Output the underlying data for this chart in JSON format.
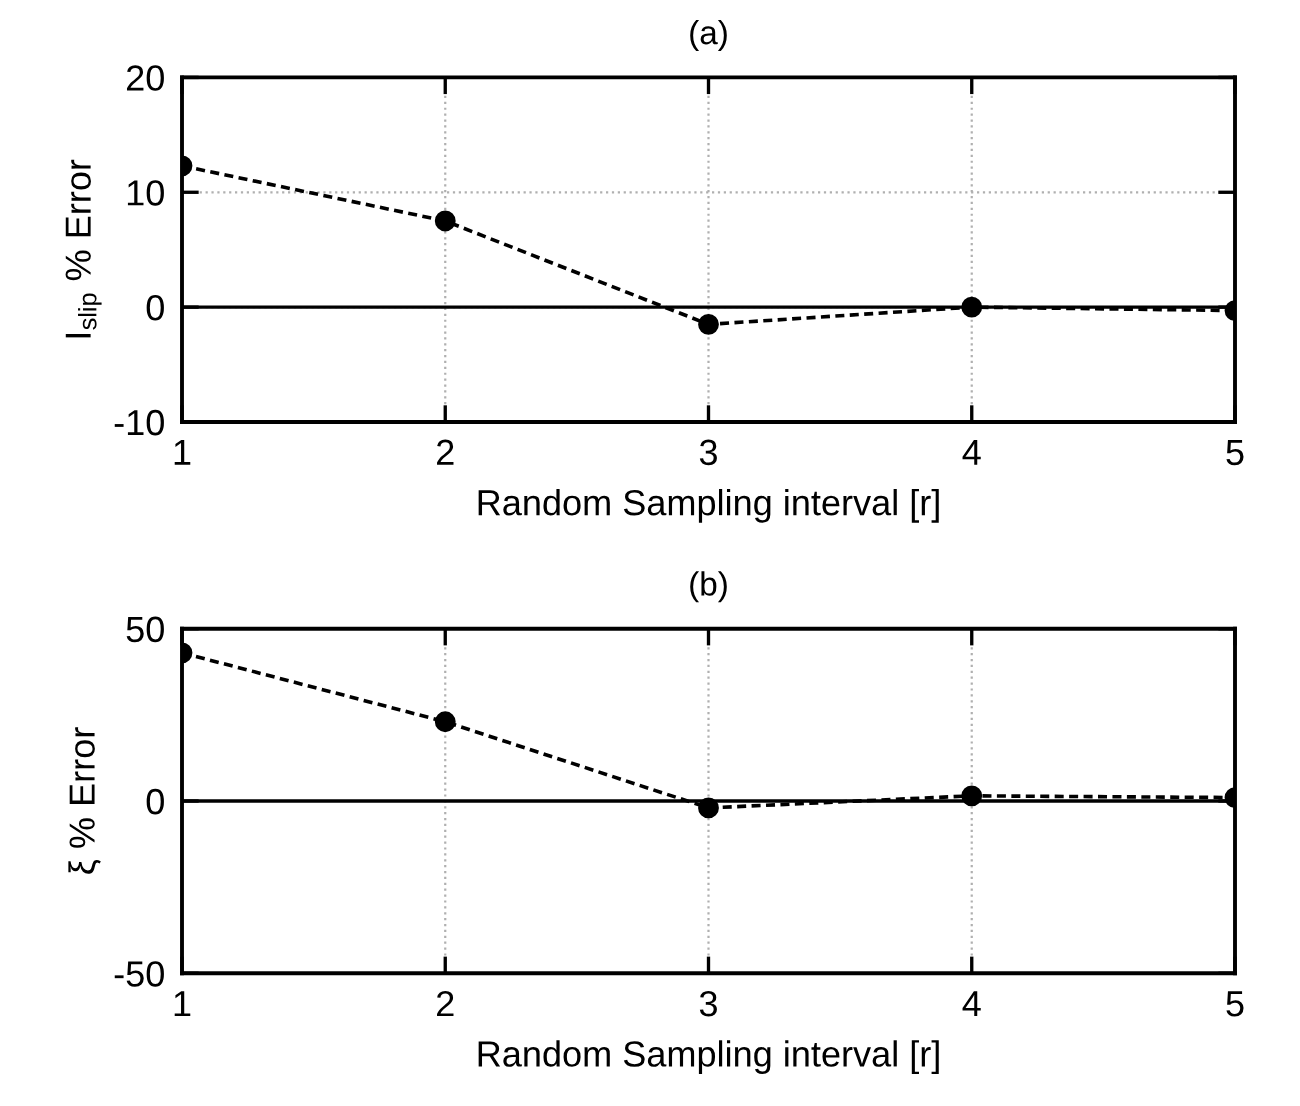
{
  "chart_data": [
    {
      "type": "line",
      "title": "(a)",
      "xlabel": "Random Sampling interval [r]",
      "ylabel": "I$_{slip}$ % Error",
      "x": [
        1,
        2,
        3,
        4,
        5
      ],
      "series": [
        {
          "color": "#000000",
          "values": [
            12.3,
            7.5,
            -1.5,
            0,
            -0.3
          ]
        }
      ],
      "xlim": [
        1,
        5
      ],
      "xticks": [
        1,
        2,
        3,
        4,
        5
      ],
      "ylim": [
        -10,
        20
      ],
      "yticks": [
        -10,
        0,
        10,
        20
      ],
      "ref_lines": [
        {
          "axis": "y",
          "value": 0,
          "color": "#000000",
          "line_style": "solid"
        }
      ],
      "grid": true,
      "marker": "circle",
      "line_style": "dashed"
    },
    {
      "type": "line",
      "title": "(b)",
      "xlabel": "Random Sampling interval [r]",
      "ylabel": "ξ % Error",
      "x": [
        1,
        2,
        3,
        4,
        5
      ],
      "series": [
        {
          "color": "#000000",
          "values": [
            43,
            23,
            -2,
            1.5,
            1
          ]
        }
      ],
      "xlim": [
        1,
        5
      ],
      "xticks": [
        1,
        2,
        3,
        4,
        5
      ],
      "ylim": [
        -50,
        50
      ],
      "yticks": [
        -50,
        0,
        50
      ],
      "ref_lines": [
        {
          "axis": "y",
          "value": 0,
          "color": "#000000",
          "line_style": "solid"
        }
      ],
      "grid": true,
      "marker": "circle",
      "line_style": "dashed"
    }
  ]
}
